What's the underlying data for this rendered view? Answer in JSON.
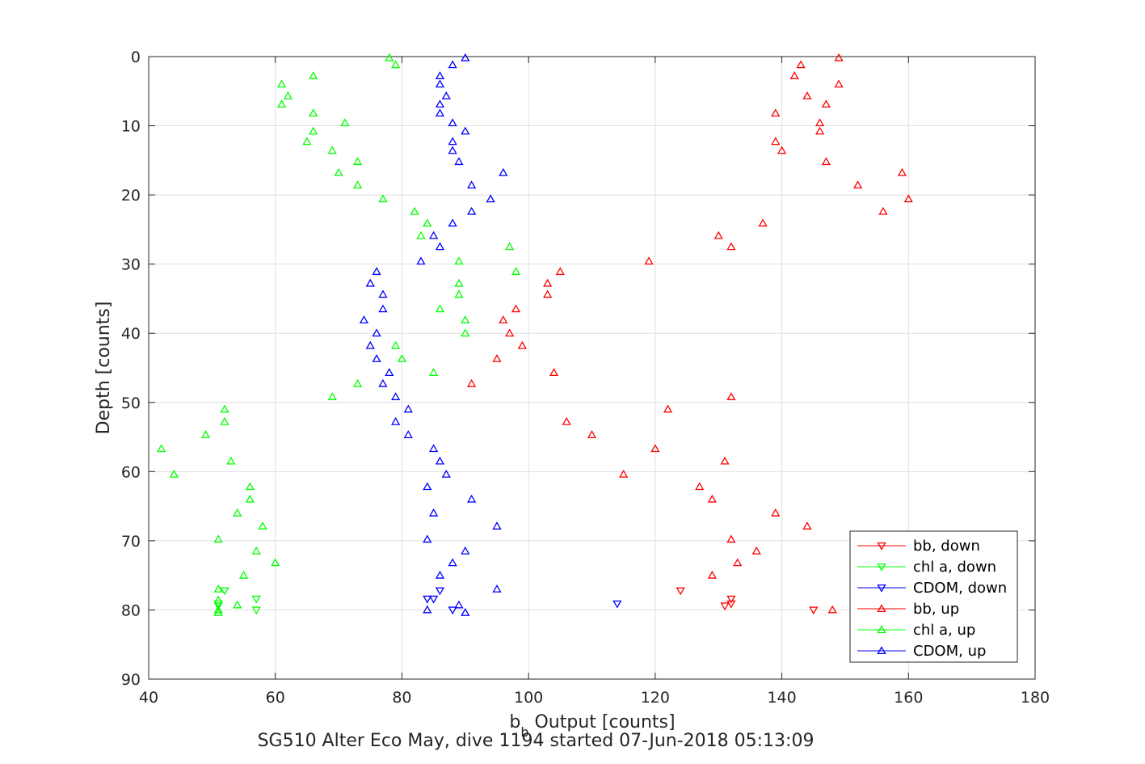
{
  "chart_data": {
    "type": "scatter",
    "title": "",
    "xlabel_main": "b",
    "xlabel_sub": "b",
    "xlabel_rest": " Output [counts]",
    "ylabel": "Depth [counts]",
    "caption": "SG510 Alter Eco May, dive 1194 started 07-Jun-2018 05:13:09",
    "xlim": [
      40,
      180
    ],
    "ylim": [
      0,
      90
    ],
    "y_reversed": true,
    "grid": true,
    "legend_location": "bottom-right",
    "x_ticks": [
      "40",
      "60",
      "80",
      "100",
      "120",
      "140",
      "160",
      "180"
    ],
    "y_ticks": [
      "0",
      "10",
      "20",
      "30",
      "40",
      "50",
      "60",
      "70",
      "80",
      "90"
    ],
    "series": [
      {
        "name": "bb, down",
        "color": "#ff0000",
        "marker": "triangle-down",
        "points": [
          [
            124,
            77.2
          ],
          [
            132,
            78.4
          ],
          [
            132,
            79.1
          ],
          [
            131,
            79.4
          ],
          [
            145,
            80
          ]
        ]
      },
      {
        "name": "chl a, down",
        "color": "#00ff00",
        "marker": "triangle-down",
        "points": [
          [
            52,
            77.2
          ],
          [
            57,
            78.4
          ],
          [
            51,
            79.1
          ],
          [
            51,
            79.4
          ],
          [
            57,
            80
          ]
        ]
      },
      {
        "name": "CDOM, down",
        "color": "#0000ff",
        "marker": "triangle-down",
        "points": [
          [
            86,
            77.2
          ],
          [
            84,
            78.4
          ],
          [
            85,
            78.4
          ],
          [
            114,
            79.1
          ],
          [
            88,
            80
          ]
        ]
      },
      {
        "name": "bb, up",
        "color": "#ff0000",
        "marker": "triangle-up",
        "points": [
          [
            149,
            0.2
          ],
          [
            143,
            1.2
          ],
          [
            142,
            2.8
          ],
          [
            149,
            4.0
          ],
          [
            144,
            5.7
          ],
          [
            147,
            6.9
          ],
          [
            139,
            8.2
          ],
          [
            146,
            9.6
          ],
          [
            146,
            10.8
          ],
          [
            139,
            12.3
          ],
          [
            140,
            13.6
          ],
          [
            147,
            15.2
          ],
          [
            159,
            16.8
          ],
          [
            152,
            18.6
          ],
          [
            160,
            20.6
          ],
          [
            156,
            22.4
          ],
          [
            137,
            24.1
          ],
          [
            130,
            25.9
          ],
          [
            132,
            27.5
          ],
          [
            119,
            29.6
          ],
          [
            105,
            31.1
          ],
          [
            103,
            32.8
          ],
          [
            103,
            34.4
          ],
          [
            98,
            36.5
          ],
          [
            96,
            38.1
          ],
          [
            97,
            40.0
          ],
          [
            99,
            41.8
          ],
          [
            95,
            43.7
          ],
          [
            104,
            45.7
          ],
          [
            91,
            47.3
          ],
          [
            132,
            49.2
          ],
          [
            122,
            51.0
          ],
          [
            106,
            52.8
          ],
          [
            110,
            54.7
          ],
          [
            120,
            56.7
          ],
          [
            115,
            60.4
          ],
          [
            131,
            58.5
          ],
          [
            127,
            62.2
          ],
          [
            129,
            64.0
          ],
          [
            139,
            66.0
          ],
          [
            144,
            67.9
          ],
          [
            132,
            69.8
          ],
          [
            136,
            71.5
          ],
          [
            133,
            73.2
          ],
          [
            129,
            75.0
          ],
          [
            148,
            80
          ]
        ]
      },
      {
        "name": "chl a, up",
        "color": "#00ff00",
        "marker": "triangle-up",
        "points": [
          [
            78,
            0.2
          ],
          [
            79,
            1.2
          ],
          [
            66,
            2.8
          ],
          [
            61,
            4.0
          ],
          [
            62,
            5.7
          ],
          [
            61,
            6.9
          ],
          [
            66,
            8.2
          ],
          [
            71,
            9.6
          ],
          [
            66,
            10.8
          ],
          [
            65,
            12.3
          ],
          [
            69,
            13.6
          ],
          [
            73,
            15.2
          ],
          [
            70,
            16.8
          ],
          [
            73,
            18.6
          ],
          [
            77,
            20.6
          ],
          [
            82,
            22.4
          ],
          [
            84,
            24.1
          ],
          [
            83,
            25.9
          ],
          [
            97,
            27.5
          ],
          [
            89,
            29.6
          ],
          [
            98,
            31.1
          ],
          [
            89,
            32.8
          ],
          [
            89,
            34.4
          ],
          [
            86,
            36.5
          ],
          [
            90,
            38.1
          ],
          [
            90,
            40.0
          ],
          [
            79,
            41.8
          ],
          [
            80,
            43.7
          ],
          [
            85,
            45.7
          ],
          [
            73,
            47.3
          ],
          [
            69,
            49.2
          ],
          [
            52,
            51.0
          ],
          [
            52,
            52.8
          ],
          [
            49,
            54.7
          ],
          [
            42,
            56.7
          ],
          [
            53,
            58.5
          ],
          [
            44,
            60.4
          ],
          [
            56,
            62.2
          ],
          [
            56,
            64.0
          ],
          [
            54,
            66.0
          ],
          [
            58,
            67.9
          ],
          [
            51,
            69.8
          ],
          [
            57,
            71.5
          ],
          [
            60,
            73.2
          ],
          [
            55,
            75.0
          ],
          [
            51,
            77.0
          ],
          [
            51,
            78.6
          ],
          [
            54,
            79.3
          ],
          [
            51,
            80.0
          ],
          [
            51,
            80.4
          ]
        ]
      },
      {
        "name": "CDOM, up",
        "color": "#0000ff",
        "marker": "triangle-up",
        "points": [
          [
            90,
            0.2
          ],
          [
            88,
            1.2
          ],
          [
            86,
            2.8
          ],
          [
            86,
            4.0
          ],
          [
            87,
            5.7
          ],
          [
            86,
            6.9
          ],
          [
            86,
            8.2
          ],
          [
            88,
            9.6
          ],
          [
            90,
            10.8
          ],
          [
            88,
            12.3
          ],
          [
            88,
            13.6
          ],
          [
            89,
            15.2
          ],
          [
            96,
            16.8
          ],
          [
            91,
            18.6
          ],
          [
            94,
            20.6
          ],
          [
            91,
            22.4
          ],
          [
            88,
            24.1
          ],
          [
            85,
            25.9
          ],
          [
            86,
            27.5
          ],
          [
            83,
            29.6
          ],
          [
            76,
            31.1
          ],
          [
            75,
            32.8
          ],
          [
            77,
            34.4
          ],
          [
            77,
            36.5
          ],
          [
            74,
            38.1
          ],
          [
            76,
            40.0
          ],
          [
            75,
            41.8
          ],
          [
            76,
            43.7
          ],
          [
            78,
            45.7
          ],
          [
            77,
            47.3
          ],
          [
            79,
            49.2
          ],
          [
            81,
            51.0
          ],
          [
            79,
            52.8
          ],
          [
            81,
            54.7
          ],
          [
            85,
            56.7
          ],
          [
            86,
            58.5
          ],
          [
            87,
            60.4
          ],
          [
            84,
            62.2
          ],
          [
            91,
            64.0
          ],
          [
            85,
            66.0
          ],
          [
            95,
            67.9
          ],
          [
            84,
            69.8
          ],
          [
            90,
            71.5
          ],
          [
            88,
            73.2
          ],
          [
            86,
            75.0
          ],
          [
            95,
            77.0
          ],
          [
            84,
            80.0
          ],
          [
            89,
            79.3
          ],
          [
            90,
            80.4
          ]
        ]
      }
    ]
  }
}
